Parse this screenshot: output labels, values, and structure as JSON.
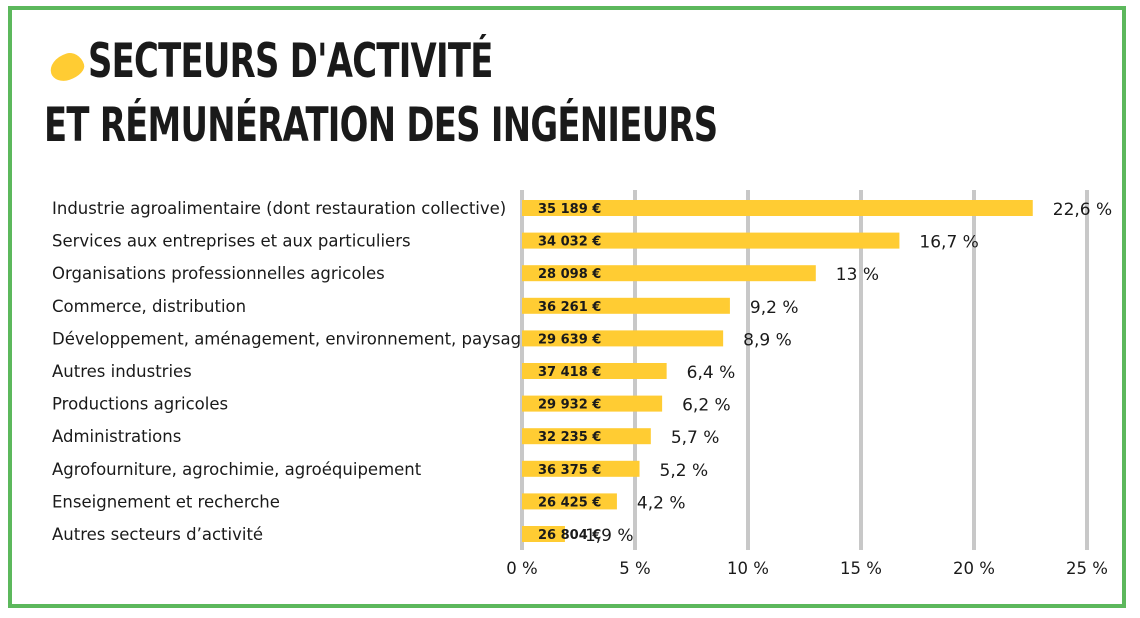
{
  "title": {
    "line1": "SECTEURS D'ACTIVITÉ",
    "line2": "ET RÉMUNÉRATION DES INGÉNIEURS"
  },
  "colors": {
    "border": "#5cb85c",
    "bar": "#ffcc33",
    "grid": "#c8c8c8",
    "accent": "#ffcc33"
  },
  "chart_data": {
    "type": "bar",
    "orientation": "horizontal",
    "title": "SECTEURS D'ACTIVITÉ ET RÉMUNÉRATION DES INGÉNIEURS",
    "xlim": [
      0,
      25
    ],
    "grid": true,
    "ticks": [
      "0 %",
      "5 %",
      "10 %",
      "15 %",
      "20 %",
      "25 %"
    ],
    "tick_values": [
      0,
      5,
      10,
      15,
      20,
      25
    ],
    "categories": [
      "Industrie agroalimentaire (dont restauration collective)",
      "Services aux entreprises et aux particuliers",
      "Organisations professionnelles agricoles",
      "Commerce, distribution",
      "Développement, aménagement, environnement, paysage",
      "Autres industries",
      "Productions agricoles",
      "Administrations",
      "Agrofourniture, agrochimie, agroéquipement",
      "Enseignement et recherche",
      "Autres secteurs d’activité"
    ],
    "values": [
      22.6,
      16.7,
      13,
      9.2,
      8.9,
      6.4,
      6.2,
      5.7,
      5.2,
      4.2,
      1.9
    ],
    "value_labels": [
      "22,6 %",
      "16,7 %",
      "13 %",
      "9,2 %",
      "8,9 %",
      "6,4 %",
      "6,2 %",
      "5,7 %",
      "5,2 %",
      "4,2 %",
      "1,9 %"
    ],
    "salary_labels": [
      "35 189 €",
      "34 032 €",
      "28 098 €",
      "36 261 €",
      "29 639 €",
      "37 418 €",
      "29 932 €",
      "32 235 €",
      "36 375 €",
      "26 425 €",
      "26 804 €"
    ]
  }
}
